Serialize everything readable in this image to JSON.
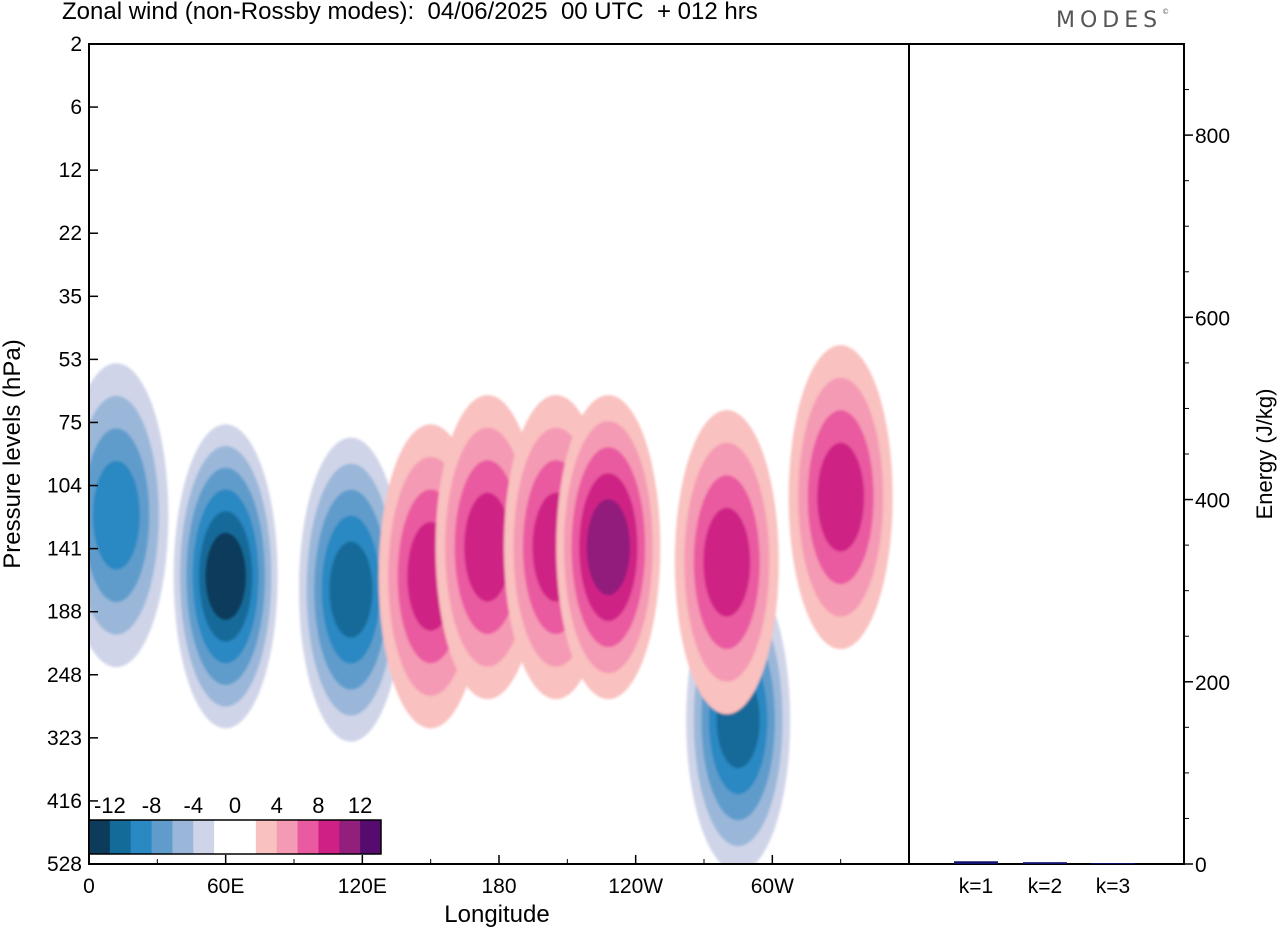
{
  "header": {
    "title": "Zonal wind (non-Rossby modes):  04/06/2025  00 UTC  + 012 hrs",
    "logo_text": "MODES",
    "logo_mark": "©"
  },
  "chart_data": [
    {
      "type": "heatmap",
      "title": "Zonal wind (non-Rossby modes):  04/06/2025  00 UTC  + 012 hrs",
      "xlabel": "Longitude",
      "ylabel": "Pressure levels (hPa)",
      "x_ticks": [
        "0",
        "60E",
        "120E",
        "180",
        "120W",
        "60W"
      ],
      "x_tick_degrees": [
        0,
        60,
        120,
        180,
        240,
        300
      ],
      "xlim": [
        0,
        360
      ],
      "y_ticks": [
        "2",
        "6",
        "12",
        "22",
        "35",
        "53",
        "75",
        "104",
        "141",
        "188",
        "248",
        "323",
        "416",
        "528"
      ],
      "y_direction": "top-to-bottom",
      "colorbar": {
        "labels": [
          "-12",
          "-8",
          "-4",
          "0",
          "4",
          "8",
          "12"
        ],
        "levels": [
          -14,
          -12,
          -10,
          -8,
          -6,
          -4,
          -2,
          0,
          2,
          4,
          6,
          8,
          10,
          12,
          14
        ],
        "colors": [
          "#0c3b5c",
          "#136b99",
          "#2a88c2",
          "#5f9ccc",
          "#9ab7d9",
          "#cfd4e8",
          "#ffffff",
          "#ffffff",
          "#f9c1bf",
          "#f59ab4",
          "#ea5aa0",
          "#cf2185",
          "#921f7c",
          "#550c6e"
        ],
        "placement": "lower-left"
      },
      "features": [
        {
          "sign": "negative",
          "lon": 60,
          "level_hpa": 160,
          "peak": -12
        },
        {
          "sign": "negative",
          "lon": 12,
          "level_hpa": 120,
          "peak": -8
        },
        {
          "sign": "negative",
          "lon": 115,
          "level_hpa": 170,
          "peak": -10
        },
        {
          "sign": "negative",
          "lon": 285,
          "level_hpa": 300,
          "peak": -10
        },
        {
          "sign": "positive",
          "lon": 150,
          "level_hpa": 160,
          "peak": 8
        },
        {
          "sign": "positive",
          "lon": 175,
          "level_hpa": 140,
          "peak": 8
        },
        {
          "sign": "positive",
          "lon": 205,
          "level_hpa": 140,
          "peak": 8
        },
        {
          "sign": "positive",
          "lon": 228,
          "level_hpa": 140,
          "peak": 10
        },
        {
          "sign": "positive",
          "lon": 280,
          "level_hpa": 150,
          "peak": 8
        },
        {
          "sign": "positive",
          "lon": 330,
          "level_hpa": 110,
          "peak": 8
        }
      ]
    },
    {
      "type": "bar",
      "ylabel": "Energy (J/kg)",
      "categories": [
        "k=1",
        "k=2",
        "k=3"
      ],
      "values": [
        3,
        2,
        1
      ],
      "ylim": [
        0,
        900
      ],
      "y_ticks": [
        0,
        200,
        400,
        600,
        800
      ],
      "bar_color": "#10106e"
    }
  ]
}
